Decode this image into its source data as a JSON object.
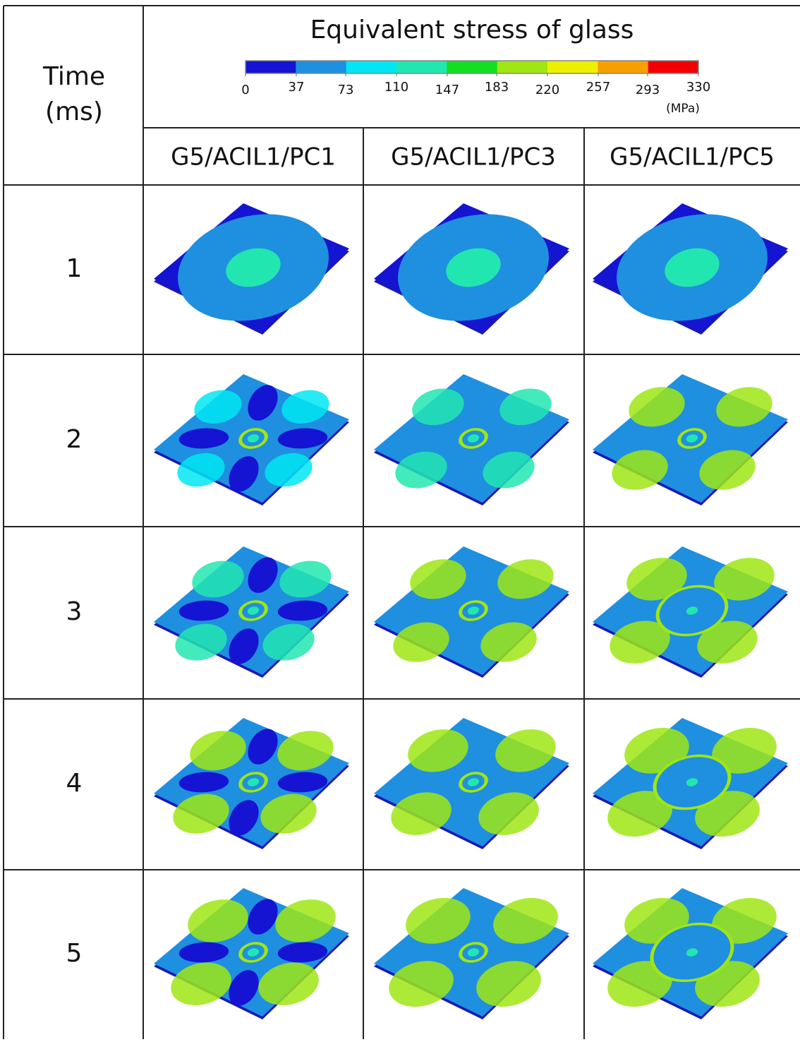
{
  "header": {
    "time_label": [
      "Time",
      "(ms)"
    ],
    "title": "Equivalent stress of glass",
    "colorbar": {
      "lim": [
        0,
        330
      ],
      "ticks": [
        0,
        37,
        73,
        110,
        147,
        183,
        220,
        257,
        293,
        330
      ],
      "unit": "(MPa)",
      "colors": [
        "#1414d2",
        "#1f8fe0",
        "#00e6f2",
        "#22e6b0",
        "#14de22",
        "#9fe614",
        "#eef000",
        "#f6a000",
        "#f00000"
      ]
    }
  },
  "columns": [
    "G5/ACIL1/PC1",
    "G5/ACIL1/PC3",
    "G5/ACIL1/PC5"
  ],
  "rows": [
    "1",
    "2",
    "3",
    "4",
    "5"
  ]
}
